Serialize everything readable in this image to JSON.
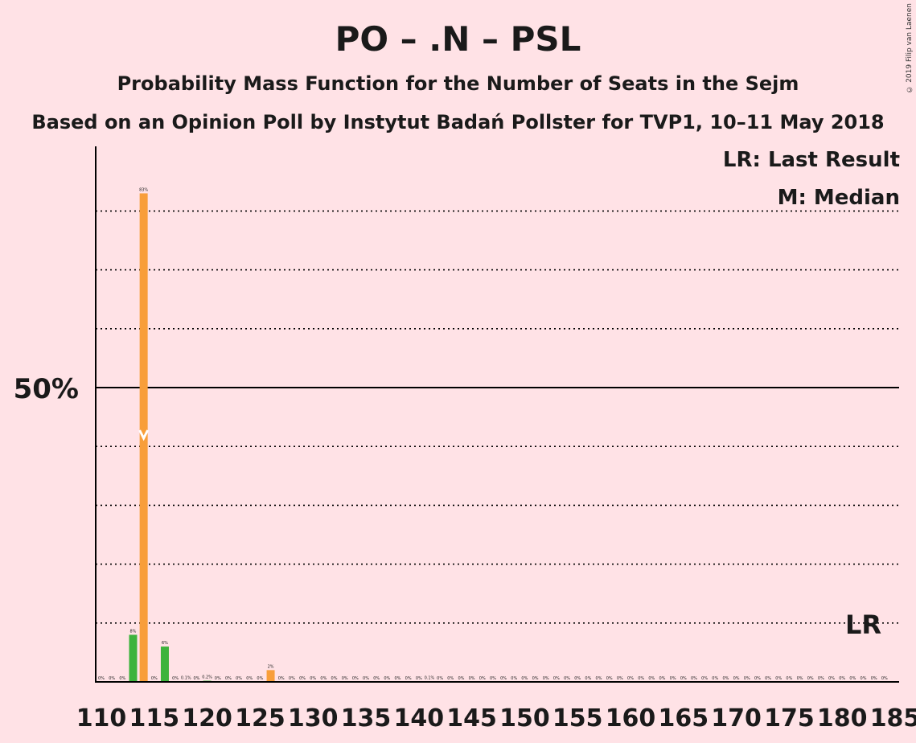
{
  "title": "PO – .N – PSL",
  "subtitle_1": "Probability Mass Function for the Number of Seats in the Sejm",
  "subtitle_2": "Based on an Opinion Poll by Instytut Badań Pollster for TVP1, 10–11 May 2018",
  "copyright": "© 2019 Filip van Laenen",
  "legend": {
    "lr": "LR: Last Result",
    "median": "M: Median"
  },
  "lr_marker": "LR",
  "median_marker": "M",
  "colors": {
    "background": "#ffe2e6",
    "orange": "#f89e3a",
    "green": "#3db33d",
    "axis": "#000000"
  },
  "chart_data": {
    "type": "bar",
    "ylabel_tick": "50%",
    "x_ticks": [
      "110",
      "115",
      "120",
      "125",
      "130",
      "135",
      "140",
      "145",
      "150",
      "155",
      "160",
      "165",
      "170",
      "175",
      "180",
      "185"
    ],
    "ylim": [
      0,
      91
    ],
    "gridlines_percent": [
      10,
      20,
      30,
      40,
      50,
      60,
      70,
      80
    ],
    "solid_line_percent": 50,
    "median_seat": 114,
    "last_result_seat": 182,
    "x": [
      110,
      111,
      112,
      113,
      114,
      115,
      116,
      117,
      118,
      119,
      120,
      121,
      122,
      123,
      124,
      125,
      126,
      127,
      128,
      129,
      130,
      131,
      132,
      133,
      134,
      135,
      136,
      137,
      138,
      139,
      140,
      141,
      142,
      143,
      144,
      145,
      146,
      147,
      148,
      149,
      150,
      151,
      152,
      153,
      154,
      155,
      156,
      157,
      158,
      159,
      160,
      161,
      162,
      163,
      164,
      165,
      166,
      167,
      168,
      169,
      170,
      171,
      172,
      173,
      174,
      175,
      176,
      177,
      178,
      179,
      180,
      181,
      182,
      183,
      184,
      185
    ],
    "values": [
      0,
      0,
      0,
      8,
      83,
      0,
      6,
      0,
      0.1,
      0,
      0.2,
      0,
      0,
      0,
      0,
      0,
      2,
      0,
      0,
      0,
      0,
      0,
      0,
      0,
      0,
      0,
      0,
      0,
      0,
      0,
      0,
      0.1,
      0,
      0,
      0,
      0,
      0,
      0,
      0,
      0,
      0,
      0,
      0,
      0,
      0,
      0,
      0,
      0,
      0,
      0,
      0,
      0,
      0,
      0,
      0,
      0,
      0,
      0,
      0,
      0,
      0,
      0,
      0,
      0,
      0,
      0,
      0,
      0,
      0,
      0,
      0,
      0,
      0,
      0,
      0,
      0
    ],
    "labels": [
      "0%",
      "0%",
      "0%",
      "8%",
      "83%",
      "0%",
      "6%",
      "0%",
      "0.1%",
      "0%",
      "0.2%",
      "0%",
      "0%",
      "0%",
      "0%",
      "0%",
      "2%",
      "0%",
      "0%",
      "0%",
      "0%",
      "0%",
      "0%",
      "0%",
      "0%",
      "0%",
      "0%",
      "0%",
      "0%",
      "0%",
      "0%",
      "0.1%",
      "0%",
      "0%",
      "0%",
      "0%",
      "0%",
      "0%",
      "0%",
      "0%",
      "0%",
      "0%",
      "0%",
      "0%",
      "0%",
      "0%",
      "0%",
      "0%",
      "0%",
      "0%",
      "0%",
      "0%",
      "0%",
      "0%",
      "0%",
      "0%",
      "0%",
      "0%",
      "0%",
      "0%",
      "0%",
      "0%",
      "0%",
      "0%",
      "0%",
      "0%",
      "0%",
      "0%",
      "0%",
      "0%",
      "0%",
      "0%",
      "0%",
      "0%",
      "0%",
      ""
    ],
    "bar_colors": [
      "green",
      "orange",
      "green",
      "green",
      "orange",
      "green",
      "green",
      "green",
      "orange",
      "green",
      "green",
      "green",
      "orange",
      "green",
      "green",
      "green",
      "orange",
      "green",
      "green",
      "green",
      "orange",
      "green",
      "green",
      "green",
      "orange",
      "green",
      "green",
      "green",
      "orange",
      "green",
      "green",
      "green",
      "orange",
      "green",
      "green",
      "green",
      "orange",
      "green",
      "green",
      "green",
      "orange",
      "green",
      "green",
      "green",
      "orange",
      "green",
      "green",
      "green",
      "orange",
      "green",
      "green",
      "green",
      "orange",
      "green",
      "green",
      "green",
      "orange",
      "green",
      "green",
      "green",
      "orange",
      "green",
      "green",
      "green",
      "orange",
      "green",
      "green",
      "green",
      "orange",
      "green",
      "green",
      "green",
      "orange",
      "green",
      "green",
      "green"
    ]
  }
}
